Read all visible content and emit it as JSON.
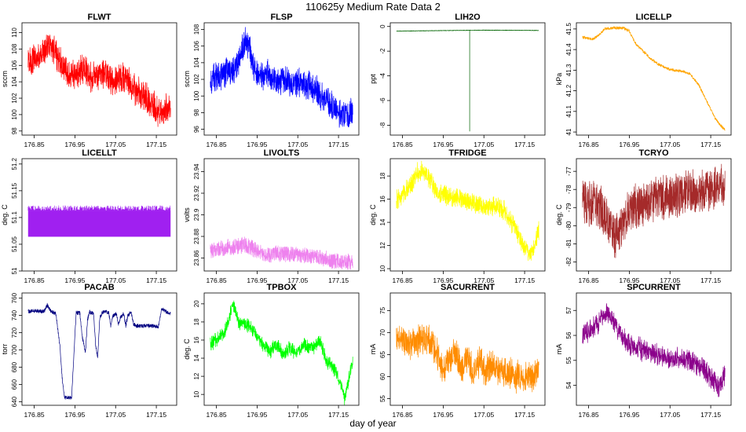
{
  "figure": {
    "title": "110625y   Medium Rate Data 2",
    "xlabel": "day of year"
  },
  "chart_data": [
    {
      "type": "line",
      "title": "FLWT",
      "ylabel": "sccm",
      "color": "#ff0000",
      "xlim": [
        176.82,
        177.2
      ],
      "ylim": [
        97.5,
        111.2
      ],
      "yticks": [
        98,
        100,
        102,
        104,
        106,
        108,
        110
      ],
      "x_ticks": [
        176.85,
        176.95,
        177.05,
        177.15
      ],
      "x_tick_labels": [
        "176.85",
        "176.95",
        "177.05",
        "177.15"
      ],
      "x_range": [
        176.835,
        177.185
      ],
      "band": [
        3.0,
        1.2
      ],
      "profile": [
        [
          176.835,
          106.5
        ],
        [
          176.86,
          107.0
        ],
        [
          176.875,
          107.8
        ],
        [
          176.885,
          108.6
        ],
        [
          176.9,
          108.0
        ],
        [
          176.91,
          106.8
        ],
        [
          176.93,
          105.3
        ],
        [
          176.95,
          104.6
        ],
        [
          176.96,
          105.2
        ],
        [
          176.975,
          105.6
        ],
        [
          176.99,
          104.4
        ],
        [
          177.005,
          104.9
        ],
        [
          177.02,
          105.2
        ],
        [
          177.04,
          104.2
        ],
        [
          177.06,
          104.6
        ],
        [
          177.08,
          104.2
        ],
        [
          177.1,
          103.0
        ],
        [
          177.12,
          102.2
        ],
        [
          177.14,
          101.2
        ],
        [
          177.16,
          100.1
        ],
        [
          177.17,
          100.4
        ],
        [
          177.185,
          101.3
        ]
      ]
    },
    {
      "type": "line",
      "title": "FLSP",
      "ylabel": "sccm",
      "color": "#0000ff",
      "xlim": [
        176.82,
        177.2
      ],
      "ylim": [
        95.3,
        108.8
      ],
      "yticks": [
        96,
        98,
        100,
        102,
        104,
        106,
        108
      ],
      "x_ticks": [
        176.85,
        176.95,
        177.05,
        177.15
      ],
      "x_tick_labels": [
        "176.85",
        "176.95",
        "177.05",
        "177.15"
      ],
      "x_range": [
        176.835,
        177.185
      ],
      "band": [
        3.0,
        1.0
      ],
      "profile": [
        [
          176.835,
          102.0
        ],
        [
          176.86,
          102.6
        ],
        [
          176.885,
          103.0
        ],
        [
          176.9,
          103.5
        ],
        [
          176.91,
          105.2
        ],
        [
          176.92,
          106.7
        ],
        [
          176.93,
          106.3
        ],
        [
          176.94,
          103.5
        ],
        [
          176.96,
          102.3
        ],
        [
          176.98,
          102.6
        ],
        [
          177.0,
          101.8
        ],
        [
          177.02,
          102.0
        ],
        [
          177.04,
          101.4
        ],
        [
          177.06,
          101.6
        ],
        [
          177.08,
          101.3
        ],
        [
          177.1,
          100.5
        ],
        [
          177.12,
          99.4
        ],
        [
          177.14,
          98.7
        ],
        [
          177.16,
          97.8
        ],
        [
          177.175,
          97.4
        ],
        [
          177.185,
          98.3
        ]
      ]
    },
    {
      "type": "line",
      "title": "LIH2O",
      "ylabel": "ppt",
      "color": "#006400",
      "xlim": [
        176.82,
        177.2
      ],
      "ylim": [
        -8.8,
        0.3
      ],
      "yticks": [
        -8,
        -6,
        -4,
        -2,
        0
      ],
      "x_ticks": [
        176.85,
        176.95,
        177.05,
        177.15
      ],
      "x_tick_labels": [
        "176.85",
        "176.95",
        "177.05",
        "177.15"
      ],
      "x_range": [
        176.835,
        177.185
      ],
      "band": [
        0.04,
        0.0
      ],
      "spike": {
        "x": 177.015,
        "y": -8.5
      },
      "profile": [
        [
          176.835,
          -0.38
        ],
        [
          176.95,
          -0.33
        ],
        [
          177.05,
          -0.3
        ],
        [
          177.185,
          -0.32
        ]
      ]
    },
    {
      "type": "line",
      "title": "LICELLP",
      "ylabel": "kPa",
      "color": "#ffa500",
      "xlim": [
        176.82,
        177.2
      ],
      "ylim": [
        40.985,
        41.53
      ],
      "yticks": [
        41.0,
        41.1,
        41.2,
        41.3,
        41.4,
        41.5
      ],
      "x_ticks": [
        176.85,
        176.95,
        177.05,
        177.15
      ],
      "x_tick_labels": [
        "176.85",
        "176.95",
        "177.05",
        "177.15"
      ],
      "x_range": [
        176.835,
        177.185
      ],
      "band": [
        0.012,
        0.004
      ],
      "profile": [
        [
          176.835,
          41.46
        ],
        [
          176.86,
          41.45
        ],
        [
          176.875,
          41.47
        ],
        [
          176.89,
          41.5
        ],
        [
          176.91,
          41.505
        ],
        [
          176.935,
          41.505
        ],
        [
          176.95,
          41.49
        ],
        [
          176.965,
          41.43
        ],
        [
          176.985,
          41.39
        ],
        [
          177.0,
          41.36
        ],
        [
          177.02,
          41.33
        ],
        [
          177.04,
          41.31
        ],
        [
          177.06,
          41.3
        ],
        [
          177.08,
          41.295
        ],
        [
          177.1,
          41.28
        ],
        [
          177.12,
          41.23
        ],
        [
          177.14,
          41.15
        ],
        [
          177.16,
          41.07
        ],
        [
          177.175,
          41.03
        ],
        [
          177.185,
          41.01
        ]
      ]
    },
    {
      "type": "line",
      "title": "LICELLT",
      "ylabel": "deg. C",
      "color": "#a020f0",
      "xlim": [
        176.82,
        177.2
      ],
      "ylim": [
        51.0,
        51.21
      ],
      "yticks": [
        51.0,
        51.05,
        51.1,
        51.15,
        51.2
      ],
      "x_ticks": [
        176.85,
        176.95,
        177.05,
        177.15
      ],
      "x_tick_labels": [
        "176.85",
        "176.95",
        "177.05",
        "177.15"
      ],
      "x_range": [
        176.835,
        177.185
      ],
      "band": [
        0.0,
        0.0
      ],
      "fill_band": [
        51.064,
        51.113
      ],
      "profile": [
        [
          176.835,
          51.09
        ],
        [
          177.185,
          51.09
        ]
      ]
    },
    {
      "type": "line",
      "title": "LIVOLTS",
      "ylabel": "volts",
      "color": "#ee82ee",
      "xlim": [
        176.82,
        177.2
      ],
      "ylim": [
        23.848,
        23.952
      ],
      "yticks": [
        23.86,
        23.88,
        23.9,
        23.92,
        23.94
      ],
      "x_ticks": [
        176.85,
        176.95,
        177.05,
        177.15
      ],
      "x_tick_labels": [
        "176.85",
        "176.95",
        "177.05",
        "177.15"
      ],
      "x_range": [
        176.835,
        177.185
      ],
      "band": [
        0.014,
        0.002
      ],
      "profile": [
        [
          176.835,
          23.866
        ],
        [
          176.88,
          23.87
        ],
        [
          176.92,
          23.872
        ],
        [
          176.945,
          23.868
        ],
        [
          176.97,
          23.863
        ],
        [
          177.0,
          23.864
        ],
        [
          177.05,
          23.863
        ],
        [
          177.1,
          23.861
        ],
        [
          177.14,
          23.857
        ],
        [
          177.185,
          23.856
        ]
      ]
    },
    {
      "type": "line",
      "title": "TFRIDGE",
      "ylabel": "deg. C",
      "color": "#ffff00",
      "xlim": [
        176.82,
        177.2
      ],
      "ylim": [
        9.8,
        19.5
      ],
      "yticks": [
        10,
        12,
        14,
        16,
        18
      ],
      "x_ticks": [
        176.85,
        176.95,
        177.05,
        177.15
      ],
      "x_tick_labels": [
        "176.85",
        "176.95",
        "177.05",
        "177.15"
      ],
      "x_range": [
        176.835,
        177.185
      ],
      "band": [
        1.4,
        0.6
      ],
      "profile": [
        [
          176.835,
          15.8
        ],
        [
          176.85,
          16.4
        ],
        [
          176.87,
          17.2
        ],
        [
          176.885,
          18.3
        ],
        [
          176.9,
          18.6
        ],
        [
          176.915,
          17.8
        ],
        [
          176.93,
          16.8
        ],
        [
          176.95,
          16.4
        ],
        [
          176.97,
          16.0
        ],
        [
          176.99,
          16.1
        ],
        [
          177.01,
          15.8
        ],
        [
          177.03,
          15.6
        ],
        [
          177.05,
          15.4
        ],
        [
          177.07,
          15.5
        ],
        [
          177.09,
          15.4
        ],
        [
          177.11,
          14.5
        ],
        [
          177.13,
          13.2
        ],
        [
          177.15,
          11.7
        ],
        [
          177.165,
          11.2
        ],
        [
          177.175,
          12.0
        ],
        [
          177.185,
          13.4
        ]
      ]
    },
    {
      "type": "line",
      "title": "TCRYO",
      "ylabel": "deg. C",
      "color": "#a52a2a",
      "xlim": [
        176.82,
        177.2
      ],
      "ylim": [
        -82.5,
        -76.3
      ],
      "yticks": [
        -82,
        -81,
        -80,
        -79,
        -78,
        -77
      ],
      "x_ticks": [
        176.85,
        176.95,
        177.05,
        177.15
      ],
      "x_tick_labels": [
        "176.85",
        "176.95",
        "177.05",
        "177.15"
      ],
      "x_range": [
        176.835,
        177.185
      ],
      "band": [
        2.2,
        0.5
      ],
      "profile": [
        [
          176.835,
          -78.7
        ],
        [
          176.86,
          -78.8
        ],
        [
          176.88,
          -79.0
        ],
        [
          176.9,
          -79.9
        ],
        [
          176.915,
          -80.5
        ],
        [
          176.93,
          -80.0
        ],
        [
          176.945,
          -79.3
        ],
        [
          176.97,
          -78.9
        ],
        [
          177.0,
          -78.6
        ],
        [
          177.05,
          -78.4
        ],
        [
          177.1,
          -78.2
        ],
        [
          177.15,
          -78.0
        ],
        [
          177.185,
          -77.8
        ]
      ]
    },
    {
      "type": "line",
      "title": "PACAB",
      "ylabel": "torr",
      "color": "#000080",
      "xlim": [
        176.82,
        177.2
      ],
      "ylim": [
        636,
        766
      ],
      "yticks": [
        640,
        660,
        680,
        700,
        720,
        740,
        760
      ],
      "x_ticks": [
        176.85,
        176.95,
        177.05,
        177.15
      ],
      "x_tick_labels": [
        "176.85",
        "176.95",
        "177.05",
        "177.15"
      ],
      "x_range": [
        176.835,
        177.185
      ],
      "band": [
        4.5,
        0.0
      ],
      "profile": [
        [
          176.835,
          745
        ],
        [
          176.875,
          745
        ],
        [
          176.882,
          752
        ],
        [
          176.89,
          745
        ],
        [
          176.903,
          742
        ],
        [
          176.913,
          705
        ],
        [
          176.92,
          660
        ],
        [
          176.925,
          645
        ],
        [
          176.942,
          645
        ],
        [
          176.948,
          700
        ],
        [
          176.953,
          743
        ],
        [
          176.962,
          743
        ],
        [
          176.968,
          715
        ],
        [
          176.976,
          697
        ],
        [
          176.981,
          735
        ],
        [
          176.986,
          744
        ],
        [
          176.996,
          742
        ],
        [
          177.001,
          705
        ],
        [
          177.006,
          690
        ],
        [
          177.011,
          737
        ],
        [
          177.018,
          744
        ],
        [
          177.033,
          744
        ],
        [
          177.038,
          727
        ],
        [
          177.043,
          740
        ],
        [
          177.052,
          742
        ],
        [
          177.057,
          730
        ],
        [
          177.062,
          738
        ],
        [
          177.07,
          742
        ],
        [
          177.075,
          728
        ],
        [
          177.08,
          740
        ],
        [
          177.088,
          744
        ],
        [
          177.094,
          730
        ],
        [
          177.101,
          728
        ],
        [
          177.14,
          728
        ],
        [
          177.155,
          727
        ],
        [
          177.163,
          748
        ],
        [
          177.175,
          744
        ],
        [
          177.185,
          742
        ]
      ]
    },
    {
      "type": "line",
      "title": "TPBOX",
      "ylabel": "deg. C",
      "color": "#00ff00",
      "xlim": [
        176.82,
        177.2
      ],
      "ylim": [
        8.8,
        21.2
      ],
      "yticks": [
        10,
        12,
        14,
        16,
        18,
        20
      ],
      "x_ticks": [
        176.85,
        176.95,
        177.05,
        177.15
      ],
      "x_tick_labels": [
        "176.85",
        "176.95",
        "177.05",
        "177.15"
      ],
      "x_range": [
        176.835,
        177.185
      ],
      "band": [
        1.2,
        0.6
      ],
      "profile": [
        [
          176.835,
          15.5
        ],
        [
          176.855,
          16.3
        ],
        [
          176.87,
          16.9
        ],
        [
          176.885,
          19.0
        ],
        [
          176.89,
          20.2
        ],
        [
          176.905,
          18.0
        ],
        [
          176.93,
          17.6
        ],
        [
          176.95,
          16.5
        ],
        [
          176.965,
          15.4
        ],
        [
          176.98,
          14.6
        ],
        [
          177.0,
          15.6
        ],
        [
          177.015,
          14.3
        ],
        [
          177.03,
          15.2
        ],
        [
          177.045,
          14.4
        ],
        [
          177.065,
          15.6
        ],
        [
          177.085,
          15.1
        ],
        [
          177.105,
          15.8
        ],
        [
          177.12,
          13.8
        ],
        [
          177.14,
          12.8
        ],
        [
          177.155,
          11.3
        ],
        [
          177.165,
          9.6
        ],
        [
          177.175,
          11.8
        ],
        [
          177.185,
          13.8
        ]
      ]
    },
    {
      "type": "line",
      "title": "SACURRENT",
      "ylabel": "mA",
      "color": "#ff8c00",
      "xlim": [
        176.82,
        177.2
      ],
      "ylim": [
        53.5,
        79
      ],
      "yticks": [
        55,
        60,
        65,
        70,
        75
      ],
      "x_ticks": [
        176.85,
        176.95,
        177.05,
        177.15
      ],
      "x_tick_labels": [
        "176.85",
        "176.95",
        "177.05",
        "177.15"
      ],
      "x_range": [
        176.835,
        177.185
      ],
      "band": [
        5.5,
        2.5
      ],
      "profile": [
        [
          176.835,
          69.0
        ],
        [
          176.86,
          67.5
        ],
        [
          176.88,
          68.0
        ],
        [
          176.9,
          68.5
        ],
        [
          176.915,
          68.0
        ],
        [
          176.935,
          65.5
        ],
        [
          176.95,
          61.0
        ],
        [
          176.965,
          63.5
        ],
        [
          176.98,
          66.5
        ],
        [
          176.995,
          61.5
        ],
        [
          177.01,
          64.5
        ],
        [
          177.025,
          60.5
        ],
        [
          177.04,
          63.8
        ],
        [
          177.055,
          61.0
        ],
        [
          177.07,
          63.0
        ],
        [
          177.09,
          61.5
        ],
        [
          177.11,
          61.0
        ],
        [
          177.13,
          60.0
        ],
        [
          177.15,
          59.8
        ],
        [
          177.17,
          60.2
        ],
        [
          177.185,
          61.0
        ]
      ]
    },
    {
      "type": "line",
      "title": "SPCURRENT",
      "ylabel": "mA",
      "color": "#8b008b",
      "xlim": [
        176.82,
        177.2
      ],
      "ylim": [
        53.2,
        57.7
      ],
      "yticks": [
        54,
        55,
        56,
        57
      ],
      "x_ticks": [
        176.85,
        176.95,
        177.05,
        177.15
      ],
      "x_tick_labels": [
        "176.85",
        "176.95",
        "177.05",
        "177.15"
      ],
      "x_range": [
        176.835,
        177.185
      ],
      "band": [
        0.7,
        0.3
      ],
      "profile": [
        [
          176.835,
          56.0
        ],
        [
          176.86,
          56.3
        ],
        [
          176.88,
          56.6
        ],
        [
          176.895,
          56.9
        ],
        [
          176.91,
          56.5
        ],
        [
          176.93,
          56.1
        ],
        [
          176.95,
          55.6
        ],
        [
          176.97,
          55.5
        ],
        [
          177.0,
          55.3
        ],
        [
          177.05,
          55.1
        ],
        [
          177.1,
          55.0
        ],
        [
          177.13,
          54.7
        ],
        [
          177.15,
          54.3
        ],
        [
          177.17,
          53.9
        ],
        [
          177.185,
          54.5
        ]
      ]
    }
  ]
}
